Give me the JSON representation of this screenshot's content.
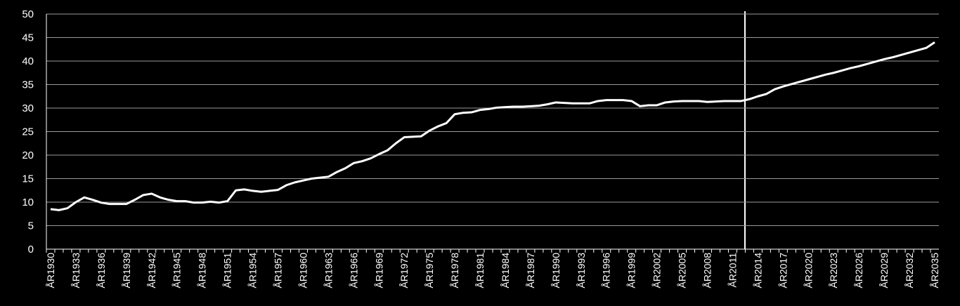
{
  "chart_data": {
    "type": "line",
    "categories": [
      "ÅR1930",
      null,
      null,
      "ÅR1933",
      null,
      null,
      "ÅR1936",
      null,
      null,
      "ÅR1939",
      null,
      null,
      "ÅR1942",
      null,
      null,
      "ÅR1945",
      null,
      null,
      "ÅR1948",
      null,
      null,
      "ÅR1951",
      null,
      null,
      "ÅR1954",
      null,
      null,
      "ÅR1957",
      null,
      null,
      "ÅR1960",
      null,
      null,
      "ÅR1963",
      null,
      null,
      "ÅR1966",
      null,
      null,
      "ÅR1969",
      null,
      null,
      "ÅR1972",
      null,
      null,
      "ÅR1975",
      null,
      null,
      "ÅR1978",
      null,
      null,
      "ÅR1981",
      null,
      null,
      "ÅR1984",
      null,
      null,
      "ÅR1987",
      null,
      null,
      "ÅR1990",
      null,
      null,
      "ÅR1993",
      null,
      null,
      "ÅR1996",
      null,
      null,
      "ÅR1999",
      null,
      null,
      "ÅR2002",
      null,
      null,
      "ÅR2005",
      null,
      null,
      "ÅR2008",
      null,
      null,
      "ÅR2011",
      null,
      null,
      "ÅR2014",
      null,
      null,
      "ÅR2017",
      null,
      null,
      "ÅR2020",
      null,
      null,
      "ÅR2023",
      null,
      null,
      "ÅR2026",
      null,
      null,
      "ÅR2029",
      null,
      null,
      "ÅR2032",
      null,
      null,
      "ÅR2035"
    ],
    "values": [
      8.5,
      8.3,
      8.7,
      10,
      11,
      10.5,
      9.9,
      9.6,
      9.6,
      9.6,
      10.5,
      11.5,
      11.8,
      11,
      10.5,
      10.2,
      10.2,
      9.9,
      9.9,
      10.1,
      9.9,
      10.2,
      12.5,
      12.7,
      12.4,
      12.2,
      12.4,
      12.6,
      13.6,
      14.2,
      14.6,
      15,
      15.2,
      15.4,
      16.4,
      17.2,
      18.3,
      18.7,
      19.3,
      20.2,
      21,
      22.5,
      23.8,
      23.9,
      24,
      25.2,
      26.1,
      26.8,
      28.7,
      29,
      29.1,
      29.6,
      29.8,
      30.1,
      30.2,
      30.3,
      30.3,
      30.4,
      30.5,
      30.8,
      31.2,
      31.1,
      31,
      31,
      31,
      31.5,
      31.7,
      31.7,
      31.7,
      31.5,
      30.4,
      30.6,
      30.6,
      31.2,
      31.4,
      31.5,
      31.5,
      31.5,
      31.3,
      31.4,
      31.5,
      31.5,
      31.5,
      31.9,
      32.5,
      33,
      34,
      34.6,
      35.1,
      35.6,
      36.1,
      36.6,
      37.1,
      37.5,
      38,
      38.5,
      38.9,
      39.4,
      39.9,
      40.4,
      40.8,
      41.3,
      41.8,
      42.3,
      42.8,
      44
    ],
    "color": "#ffffff",
    "ylim": [
      0,
      50
    ],
    "yticks": [
      0,
      5,
      10,
      15,
      20,
      25,
      30,
      35,
      40,
      45,
      50
    ],
    "grid": true
  }
}
